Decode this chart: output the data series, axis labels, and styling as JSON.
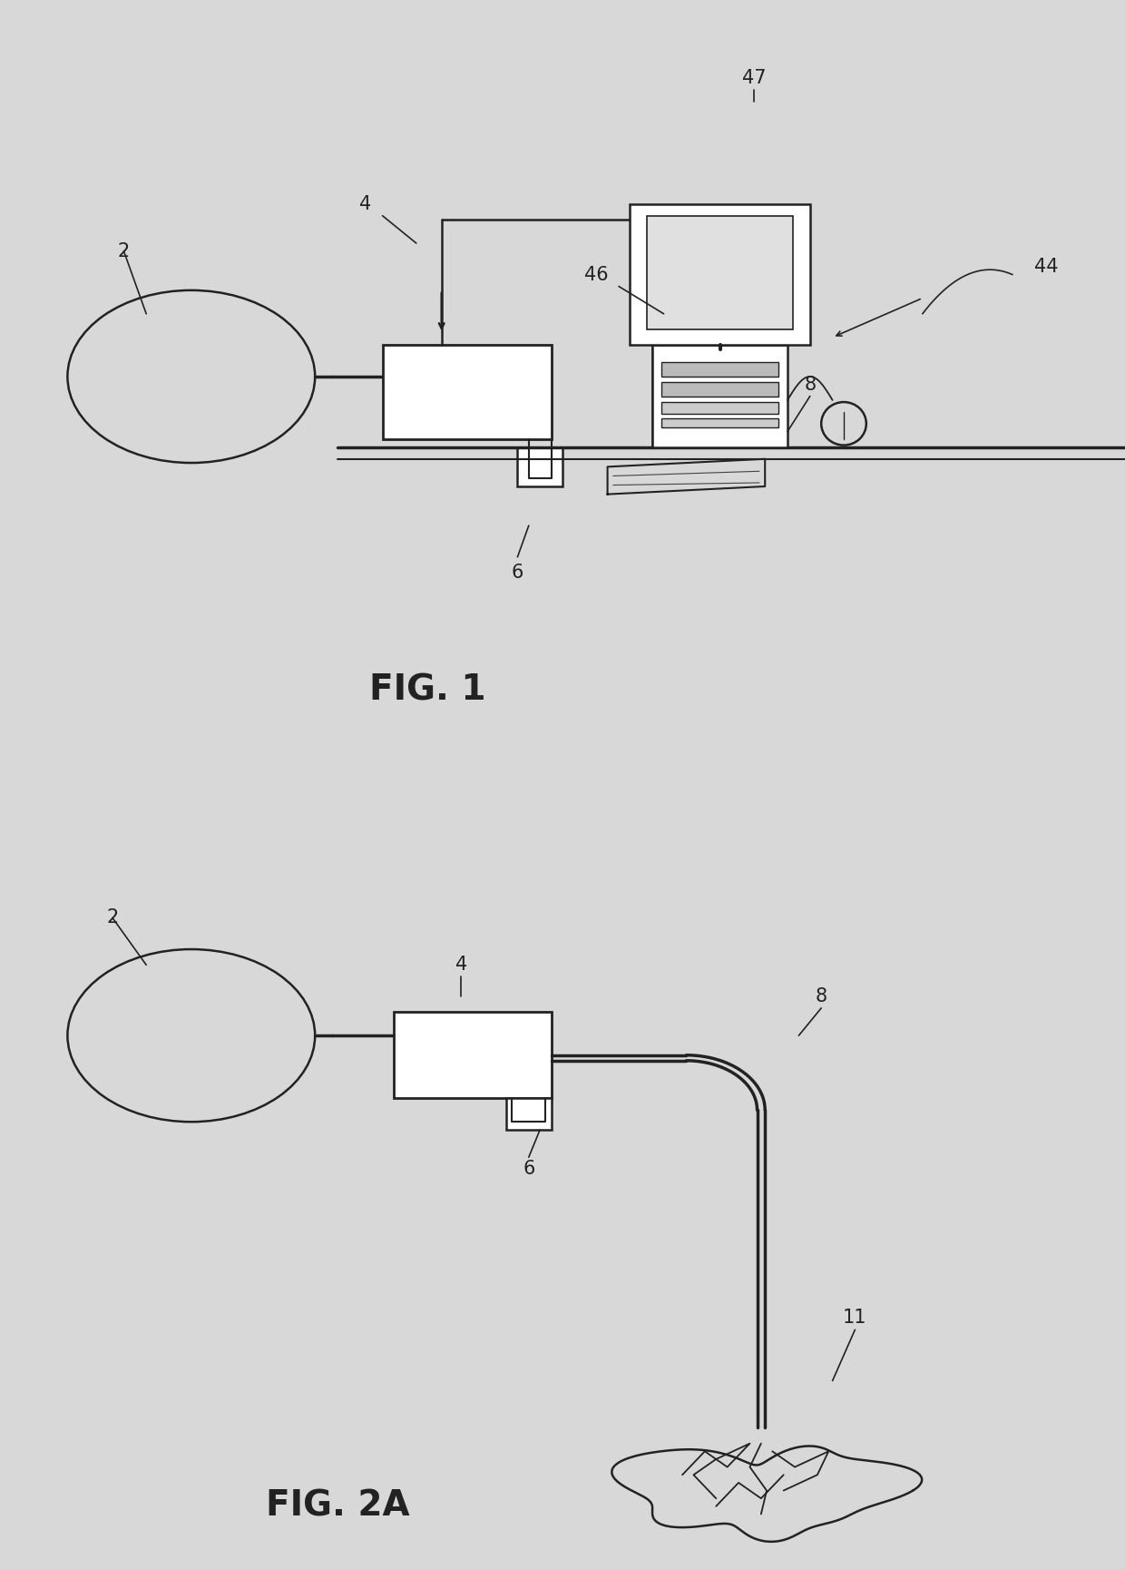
{
  "background_color": "#d8d8d8",
  "line_color": "#222222",
  "fig1_caption": "FIG. 1",
  "fig2_caption": "FIG. 2A",
  "caption_fontsize": 28,
  "label_fontsize": 15,
  "label_2_fig1": "2",
  "label_4_fig1": "4",
  "label_6_fig1": "6",
  "label_8_fig1": "8",
  "label_44_fig1": "44",
  "label_46_fig1": "46",
  "label_47_fig1": "47",
  "label_2_fig2": "2",
  "label_4_fig2": "4",
  "label_6_fig2": "6",
  "label_8_fig2": "8",
  "label_11_fig2": "11"
}
